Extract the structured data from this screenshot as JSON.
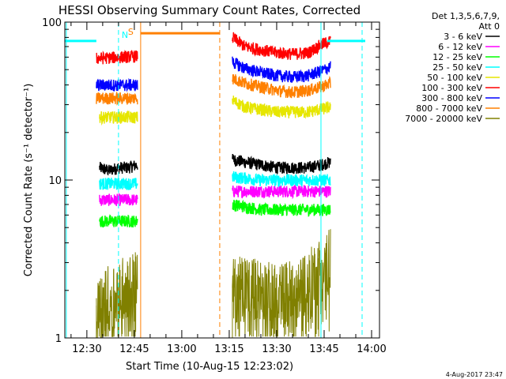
{
  "chart_data": {
    "type": "line",
    "title": "HESSI Observing Summary Count Rates, Corrected",
    "xlabel": "Start Time (10-Aug-15 12:23:02)",
    "ylabel": "Corrected Count Rate (s⁻¹ detector⁻¹)",
    "y_scale": "log",
    "ylim": [
      1,
      100
    ],
    "xlim": [
      "12:23:02",
      "14:02:30"
    ],
    "x_ticks": [
      "12:30",
      "12:45",
      "13:00",
      "13:15",
      "13:30",
      "13:45",
      "14:00"
    ],
    "y_ticks": [
      "1",
      "10",
      "100"
    ],
    "legend_position": "top-right",
    "legend_header": [
      "Det 1,3,5,6,7,9,",
      "Att 0"
    ],
    "footer_date": "4-Aug-2017 23:47",
    "markers": [
      {
        "label": "N",
        "kind": "night",
        "color": "#00ffff"
      },
      {
        "label": "S",
        "kind": "saa",
        "color": "#ff8000"
      }
    ],
    "series": [
      {
        "name": "3 - 6 keV",
        "color": "#000000",
        "segments": [
          {
            "x": [
              "12:34",
              "12:37",
              "12:40",
              "12:43",
              "12:46"
            ],
            "y": [
              12,
              11.5,
              12,
              12,
              12.5
            ]
          },
          {
            "x": [
              "13:16",
              "13:20",
              "13:25",
              "13:30",
              "13:35",
              "13:40",
              "13:44",
              "13:47"
            ],
            "y": [
              13.5,
              13,
              12.5,
              12,
              12,
              12,
              12.5,
              13
            ]
          }
        ]
      },
      {
        "name": "6 - 12 keV",
        "color": "#ff00ff",
        "segments": [
          {
            "x": [
              "12:34",
              "12:40",
              "12:46"
            ],
            "y": [
              7.5,
              7.5,
              7.5
            ]
          },
          {
            "x": [
              "13:16",
              "13:25",
              "13:35",
              "13:47"
            ],
            "y": [
              8.5,
              8.5,
              8.5,
              8.5
            ]
          }
        ]
      },
      {
        "name": "12 - 25 keV",
        "color": "#00ff00",
        "segments": [
          {
            "x": [
              "12:34",
              "12:40",
              "12:46"
            ],
            "y": [
              5.5,
              5.5,
              5.5
            ]
          },
          {
            "x": [
              "13:16",
              "13:25",
              "13:35",
              "13:47"
            ],
            "y": [
              7,
              6.5,
              6.5,
              6.5
            ]
          }
        ]
      },
      {
        "name": "25 - 50 keV",
        "color": "#00ffff",
        "segments": [
          {
            "x": [
              "12:34",
              "12:40",
              "12:46"
            ],
            "y": [
              9.5,
              9.5,
              9.5
            ]
          },
          {
            "x": [
              "13:16",
              "13:25",
              "13:35",
              "13:47"
            ],
            "y": [
              10.5,
              10,
              10,
              10
            ]
          }
        ]
      },
      {
        "name": "50 - 100 keV",
        "color": "#e6e600",
        "segments": [
          {
            "x": [
              "12:34",
              "12:40",
              "12:46"
            ],
            "y": [
              25,
              25,
              25
            ]
          },
          {
            "x": [
              "13:16",
              "13:20",
              "13:30",
              "13:40",
              "13:47"
            ],
            "y": [
              32,
              29,
              27,
              27,
              29
            ]
          }
        ]
      },
      {
        "name": "100 - 300 keV",
        "color": "#ff0000",
        "segments": [
          {
            "x": [
              "12:33",
              "12:40",
              "12:46"
            ],
            "y": [
              59,
              60,
              61
            ]
          },
          {
            "x": [
              "13:16",
              "13:20",
              "13:25",
              "13:30",
              "13:35",
              "13:40",
              "13:44",
              "13:47"
            ],
            "y": [
              80,
              70,
              67,
              64,
              63,
              64,
              72,
              76
            ]
          }
        ]
      },
      {
        "name": "300 - 800 keV",
        "color": "#0000ff",
        "segments": [
          {
            "x": [
              "12:33",
              "12:40",
              "12:46"
            ],
            "y": [
              40,
              40,
              40
            ]
          },
          {
            "x": [
              "13:16",
              "13:20",
              "13:25",
              "13:30",
              "13:35",
              "13:40",
              "13:44",
              "13:47"
            ],
            "y": [
              56,
              51,
              48,
              46,
              45,
              46,
              49,
              52
            ]
          }
        ]
      },
      {
        "name": "800 - 7000 keV",
        "color": "#ff8000",
        "segments": [
          {
            "x": [
              "12:33",
              "12:40",
              "12:46"
            ],
            "y": [
              33,
              33,
              33
            ]
          },
          {
            "x": [
              "13:16",
              "13:20",
              "13:25",
              "13:30",
              "13:35",
              "13:40",
              "13:44",
              "13:47"
            ],
            "y": [
              44,
              41,
              39,
              37,
              36,
              37,
              39,
              41
            ]
          }
        ]
      },
      {
        "name": "7000 - 20000 keV",
        "color": "#808000",
        "segments": [
          {
            "x": [
              "12:33",
              "12:37",
              "12:42",
              "12:46"
            ],
            "y": [
              1.6,
              2,
              2.3,
              2.5
            ]
          },
          {
            "x": [
              "13:16",
              "13:20",
              "13:25",
              "13:30",
              "13:35",
              "13:40",
              "13:44",
              "13:47"
            ],
            "y": [
              2.2,
              2.3,
              2.2,
              2,
              2.2,
              2.5,
              3,
              3.5
            ]
          }
        ]
      }
    ]
  }
}
